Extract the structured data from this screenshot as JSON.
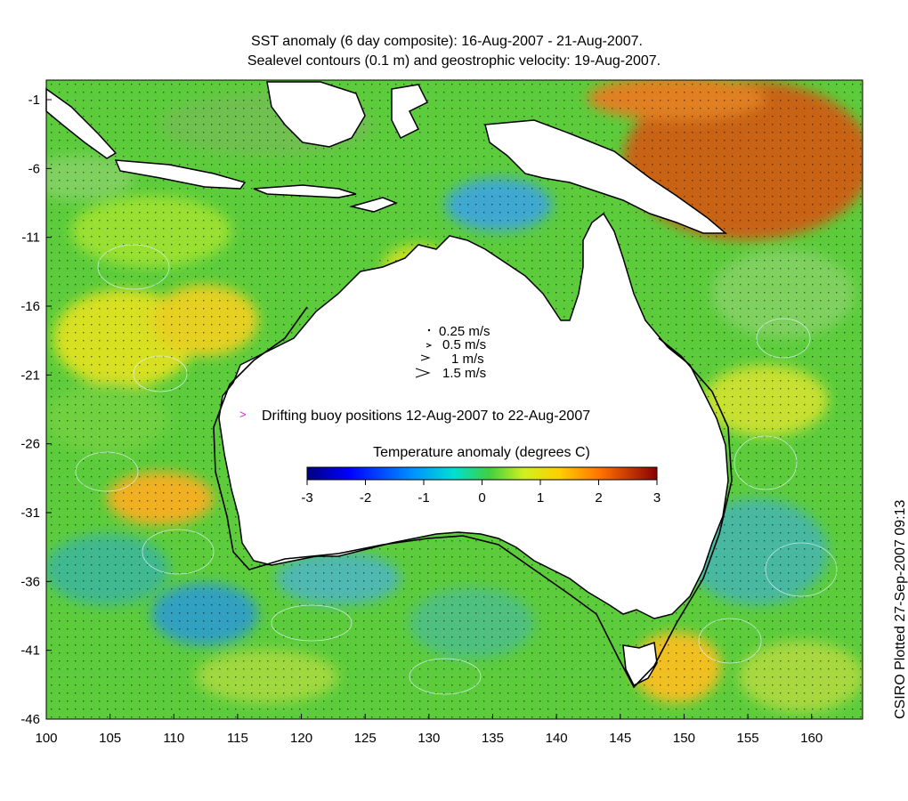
{
  "title": {
    "line1": "SST anomaly (6 day composite): 16-Aug-2007 - 21-Aug-2007.",
    "line2": "Sealevel contours (0.1 m) and geostrophic velocity: 19-Aug-2007."
  },
  "axes": {
    "x_ticks": [
      "100",
      "105",
      "110",
      "115",
      "120",
      "125",
      "130",
      "135",
      "140",
      "145",
      "150",
      "155",
      "160"
    ],
    "y_ticks": [
      "-1",
      "-6",
      "-11",
      "-16",
      "-21",
      "-26",
      "-31",
      "-36",
      "-41",
      "-46"
    ],
    "lon_range": [
      100,
      164
    ],
    "lat_range": [
      -46,
      0
    ]
  },
  "velocity_legend": {
    "items": [
      "0.25 m/s",
      "0.5 m/s",
      "1 m/s",
      "1.5 m/s"
    ]
  },
  "buoy_legend": {
    "symbol": ">",
    "label": "Drifting buoy positions 12-Aug-2007 to 22-Aug-2007",
    "color": "#e020e0"
  },
  "colorbar": {
    "title": "Temperature anomaly (degrees C)",
    "ticks": [
      "-3",
      "-2",
      "-1",
      "0",
      "1",
      "2",
      "3"
    ],
    "colors": [
      "#00007f",
      "#0000ff",
      "#0080ff",
      "#00ffff",
      "#80ff80",
      "#ffff00",
      "#ff8000",
      "#ff0000",
      "#7f0000"
    ]
  },
  "credit": "CSIRO Plotted 27-Sep-2007 09:13"
}
